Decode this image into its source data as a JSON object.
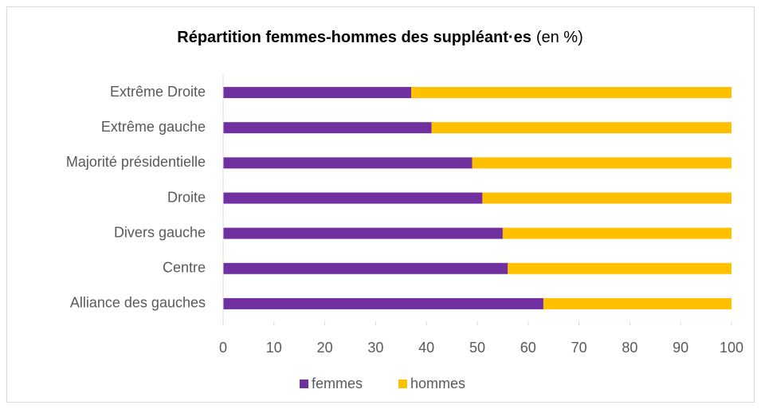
{
  "chart_data": {
    "type": "stacked_barh",
    "title": "Répartition femmes-hommes des suppléant·es",
    "title_unit": "(en %)",
    "categories": [
      "Extrême Droite",
      "Extrême gauche",
      "Majorité présidentielle",
      "Droite",
      "Divers gauche",
      "Centre",
      "Alliance des gauches"
    ],
    "series": [
      {
        "name": "femmes",
        "color": "#7030a0",
        "values": [
          37,
          41,
          49,
          51,
          55,
          56,
          63
        ]
      },
      {
        "name": "hommes",
        "color": "#ffc000",
        "values": [
          63,
          59,
          51,
          49,
          45,
          44,
          37
        ]
      }
    ],
    "xlim": [
      0,
      100
    ],
    "xticks": [
      0,
      10,
      20,
      30,
      40,
      50,
      60,
      70,
      80,
      90,
      100
    ],
    "legend": "bottom",
    "grid": false
  }
}
